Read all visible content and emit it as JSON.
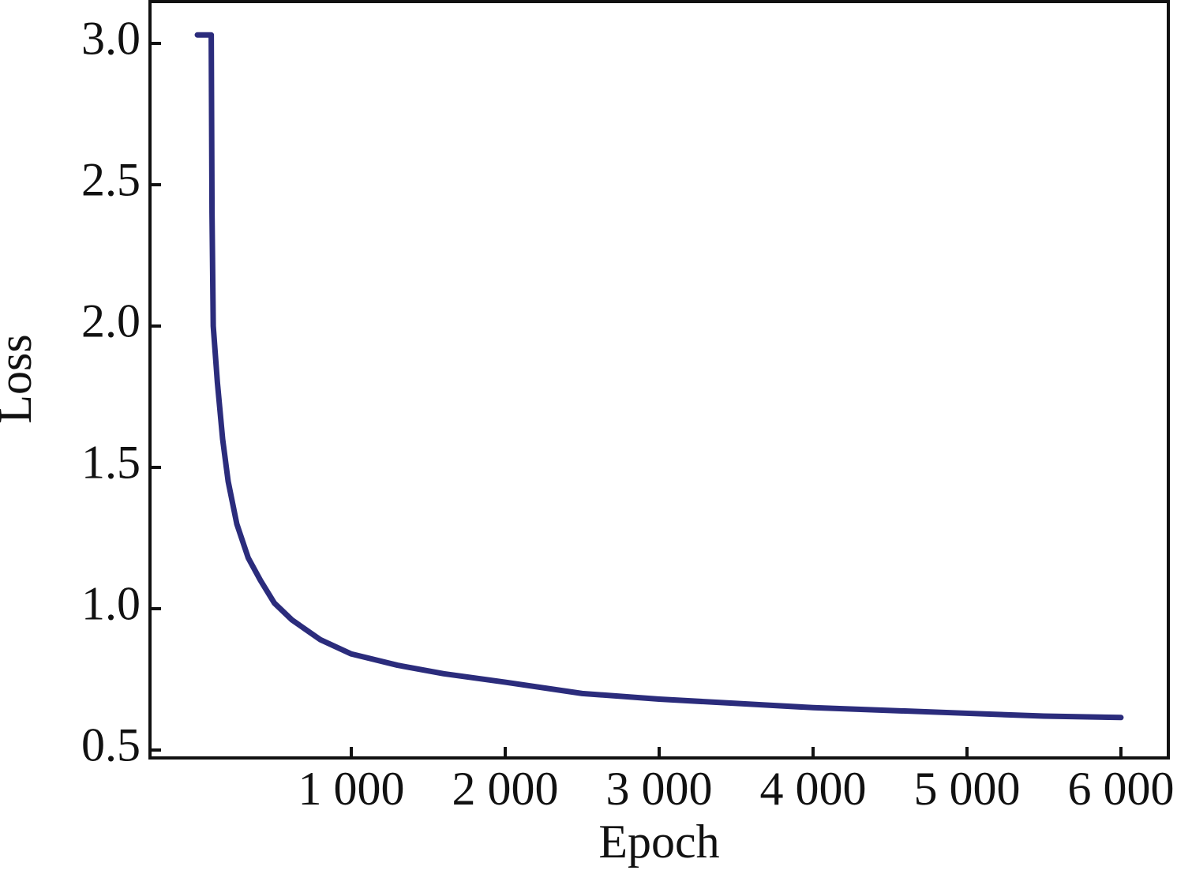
{
  "chart_data": {
    "type": "line",
    "x_label": "Epoch",
    "y_label": "Loss",
    "x": [
      0,
      90,
      95,
      103,
      130,
      164,
      200,
      256,
      330,
      410,
      500,
      615,
      800,
      1000,
      1300,
      1600,
      2000,
      2500,
      3000,
      3500,
      4000,
      4500,
      5000,
      5500,
      6000
    ],
    "values": [
      3.03,
      3.03,
      2.4,
      2.0,
      1.8,
      1.6,
      1.45,
      1.3,
      1.18,
      1.1,
      1.02,
      0.96,
      0.89,
      0.84,
      0.8,
      0.77,
      0.74,
      0.7,
      0.68,
      0.665,
      0.65,
      0.64,
      0.63,
      0.62,
      0.615
    ],
    "color": "#2b2c7c",
    "xlim": [
      -308,
      6308
    ],
    "ylim": [
      0.472,
      3.148
    ],
    "xticks": [
      {
        "value": 1000,
        "label": "1 000"
      },
      {
        "value": 2000,
        "label": "2 000"
      },
      {
        "value": 3000,
        "label": "3 000"
      },
      {
        "value": 4000,
        "label": "4 000"
      },
      {
        "value": 5000,
        "label": "5 000"
      },
      {
        "value": 6000,
        "label": "6 000"
      }
    ],
    "yticks": [
      0.5,
      {
        "value": 1,
        "label": "1.0"
      },
      1.5,
      {
        "value": 2,
        "label": "2.0"
      },
      2.5,
      {
        "value": 3,
        "label": "3.0"
      }
    ],
    "grid": false
  }
}
